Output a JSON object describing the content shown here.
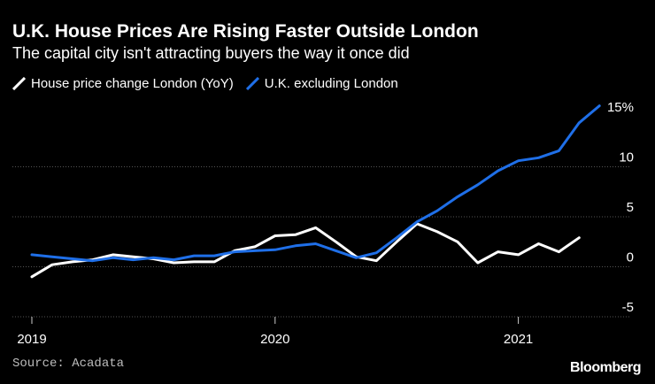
{
  "chart_data": {
    "type": "line",
    "title": "U.K. House Prices Are Rising Faster Outside London",
    "subtitle": "The capital city isn't attracting buyers the way it once did",
    "source": "Source: Acadata",
    "brand": "Bloomberg",
    "ylim": [
      -5,
      15
    ],
    "yticks": [
      {
        "value": 15,
        "label": "15%"
      },
      {
        "value": 10,
        "label": "10"
      },
      {
        "value": 5,
        "label": "5"
      },
      {
        "value": 0,
        "label": "0"
      },
      {
        "value": -5,
        "label": "-5"
      }
    ],
    "xticks": [
      {
        "index": 0,
        "label": "2019"
      },
      {
        "index": 12,
        "label": "2020"
      },
      {
        "index": 24,
        "label": "2021"
      }
    ],
    "xlim": [
      0,
      28
    ],
    "series": [
      {
        "name": "House price change London (YoY)",
        "color": "#ffffff",
        "values": [
          -1.0,
          0.2,
          0.5,
          0.7,
          1.2,
          1.0,
          0.8,
          0.4,
          0.5,
          0.5,
          1.6,
          2.0,
          3.1,
          3.2,
          3.9,
          2.5,
          1.0,
          0.6,
          2.5,
          4.3,
          3.5,
          2.5,
          0.4,
          1.5,
          1.2,
          2.3,
          1.5,
          2.9
        ]
      },
      {
        "name": "U.K. excluding London",
        "color": "#1f6fe8",
        "values": [
          1.2,
          1.0,
          0.8,
          0.6,
          0.9,
          0.7,
          0.9,
          0.7,
          1.1,
          1.1,
          1.5,
          1.6,
          1.7,
          2.1,
          2.3,
          1.6,
          0.9,
          1.4,
          2.9,
          4.5,
          5.6,
          7.0,
          8.2,
          9.6,
          10.6,
          10.9,
          11.6,
          14.4,
          16.1
        ]
      }
    ]
  }
}
